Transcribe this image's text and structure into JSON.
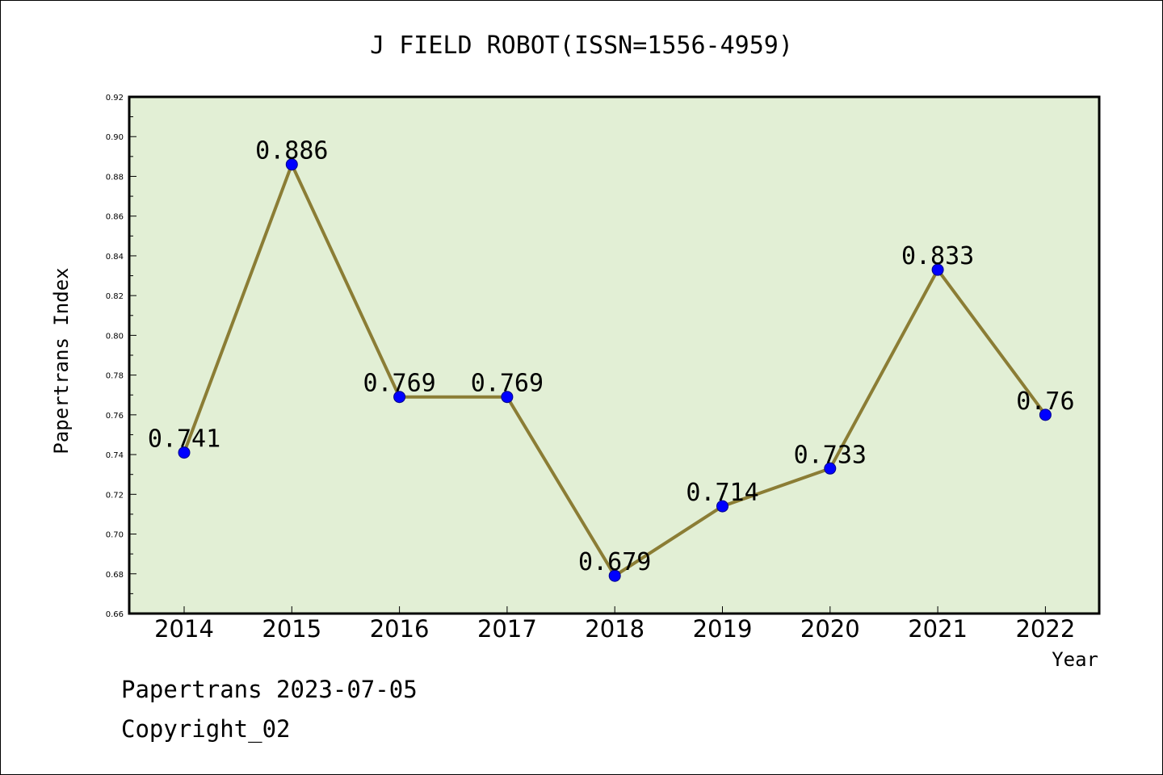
{
  "chart_data": {
    "type": "line",
    "title": "J FIELD ROBOT(ISSN=1556-4959)",
    "xlabel": "Year",
    "ylabel": "Papertrans Index",
    "categories": [
      "2014",
      "2015",
      "2016",
      "2017",
      "2018",
      "2019",
      "2020",
      "2021",
      "2022"
    ],
    "series": [
      {
        "values": [
          0.741,
          0.886,
          0.769,
          0.769,
          0.679,
          0.714,
          0.733,
          0.833,
          0.76
        ],
        "labels": [
          "0.741",
          "0.886",
          "0.769",
          "0.769",
          "0.679",
          "0.714",
          "0.733",
          "0.833",
          "0.76"
        ]
      }
    ],
    "ylim": [
      0.66,
      0.92
    ],
    "yticks": [
      "0.66",
      "0.68",
      "0.70",
      "0.72",
      "0.74",
      "0.76",
      "0.78",
      "0.80",
      "0.82",
      "0.84",
      "0.86",
      "0.88",
      "0.90",
      "0.92"
    ],
    "grid": false,
    "colors": {
      "plot_background": "#e2efd5",
      "line": "#8b7d35",
      "marker": "#0000ff"
    }
  },
  "footer": {
    "line1": "Papertrans 2023-07-05",
    "line2": "Copyright_02"
  }
}
